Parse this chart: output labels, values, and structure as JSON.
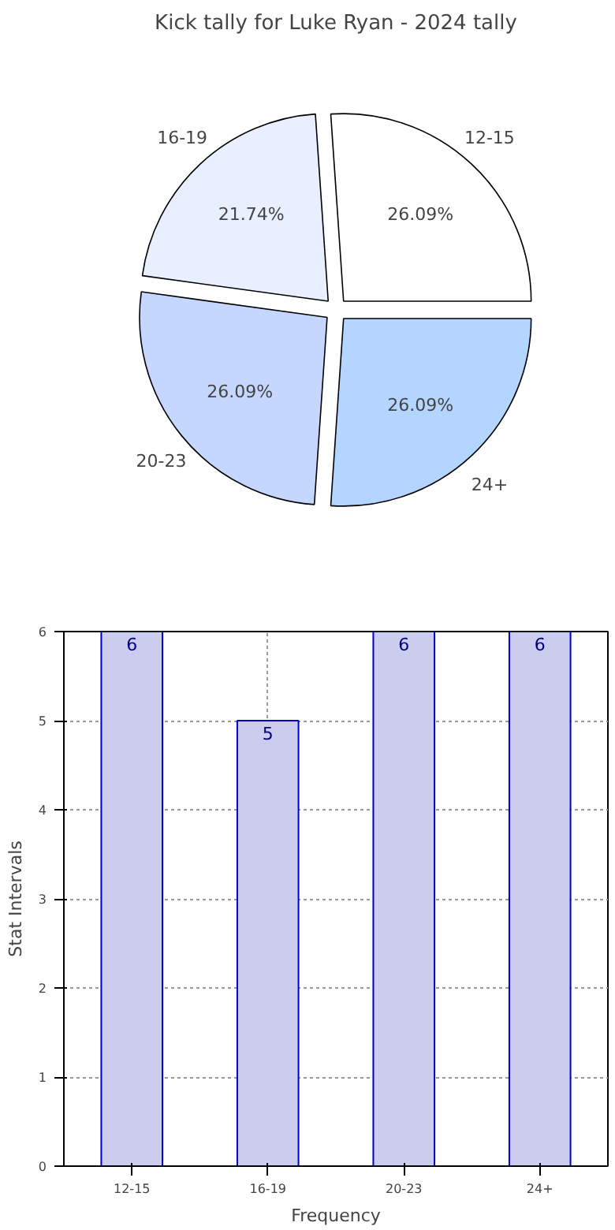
{
  "chart_data": [
    {
      "type": "pie",
      "title": "Kick tally for Luke Ryan - 2024 tally",
      "categories": [
        "12-15",
        "16-19",
        "20-23",
        "24+"
      ],
      "values": [
        26.09,
        21.74,
        26.09,
        26.09
      ],
      "value_labels": [
        "26.09%",
        "21.74%",
        "26.09%",
        "26.09%"
      ],
      "colors": [
        "#ffffff",
        "#e8f0ff",
        "#c6d7ff",
        "#b3d5ff"
      ]
    },
    {
      "type": "bar",
      "categories": [
        "12-15",
        "16-19",
        "20-23",
        "24+"
      ],
      "values": [
        6,
        5,
        6,
        6
      ],
      "color": "#ccccee",
      "xlabel": "Frequency",
      "ylabel": "Stat Intervals",
      "ylim": [
        0,
        6
      ],
      "yticks": [
        0,
        1,
        2,
        3,
        4,
        5,
        6
      ],
      "grid": true,
      "data_labels": true
    }
  ]
}
